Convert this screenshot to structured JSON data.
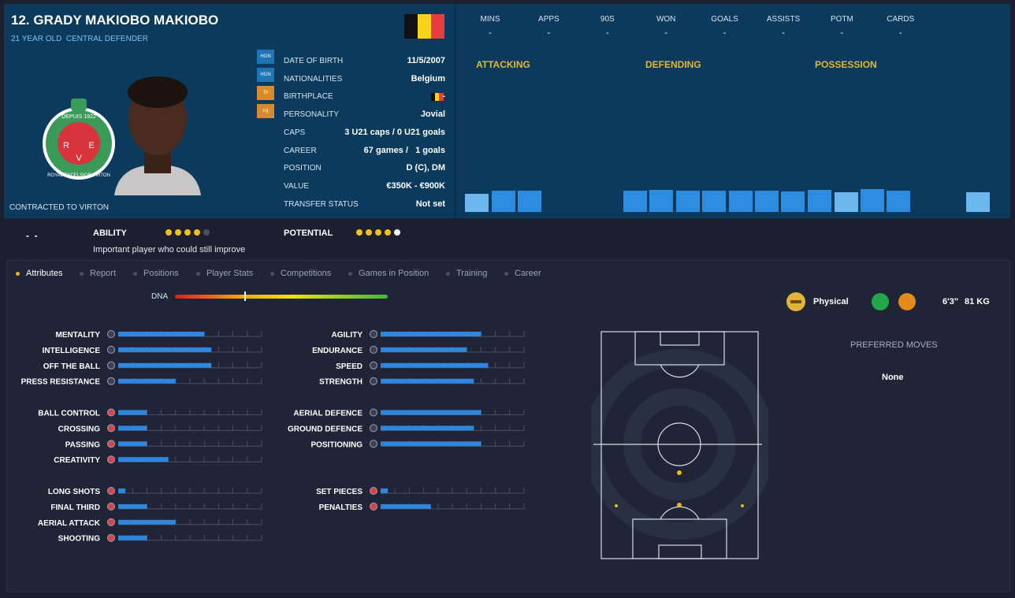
{
  "header": {
    "title": "12. GRADY MAKIOBO MAKIOBO",
    "subtitle": "21 YEAR OLD  CENTRAL DEFENDER",
    "contract": "CONTRACTED TO VIRTON",
    "crest": {
      "top": "DEPUIS 1922",
      "ring": "ROYAL EXCELSIOR VIRTON",
      "letters": [
        "R",
        "E",
        "V"
      ]
    }
  },
  "badges": [
    "HGN",
    "HGN",
    "Tir",
    "Inj"
  ],
  "details": [
    [
      "DATE OF BIRTH",
      "11/5/2007"
    ],
    [
      "NATIONALITIES",
      "Belgium"
    ],
    [
      "BIRTHPLACE",
      "-"
    ],
    [
      "PERSONALITY",
      "Jovial"
    ],
    [
      "CAPS",
      "3 U21 caps / 0 U21 goals"
    ],
    [
      "CAREER",
      "67 games /   1 goals"
    ],
    [
      "POSITION",
      "D (C), DM"
    ],
    [
      "VALUE",
      "€350K - €900K"
    ],
    [
      "TRANSFER STATUS",
      "Not set"
    ]
  ],
  "stats": {
    "headers": [
      "MINS",
      "APPS",
      "90S",
      "WON",
      "GOALS",
      "ASSISTS",
      "POTM",
      "CARDS"
    ],
    "values": [
      "-",
      "-",
      "-",
      "-",
      "-",
      "-",
      "-",
      "-"
    ]
  },
  "sections": [
    "ATTACKING",
    "DEFENDING",
    "POSSESSION"
  ],
  "rating": {
    "dashes": "-  -",
    "ability": {
      "label": "ABILITY",
      "dots": 4,
      "max": 5
    },
    "potential": {
      "label": "POTENTIAL",
      "dots": 4,
      "max": 5
    },
    "comment": "Important player who could still improve"
  },
  "tabs": [
    "Attributes",
    "Report",
    "Positions",
    "Player Stats",
    "Competitions",
    "Games in Position",
    "Training",
    "Career"
  ],
  "dna": "DNA",
  "physical": "Physical",
  "height": "6'3\"",
  "weight": "81 KG",
  "preferred_moves": {
    "title": "PREFERRED MOVES",
    "value": "None"
  },
  "attributes": {
    "range": [
      0,
      20
    ],
    "ticks": [
      2,
      4,
      6,
      8,
      10,
      12,
      14,
      16,
      18,
      20
    ],
    "columns": [
      [
        [
          {
            "name": "MENTALITY",
            "value": 12
          },
          {
            "name": "INTELLIGENCE",
            "value": 13
          },
          {
            "name": "OFF THE BALL",
            "value": 13
          },
          {
            "name": "PRESS RESISTANCE",
            "value": 8
          }
        ],
        [
          {
            "name": "BALL CONTROL",
            "value": 4
          },
          {
            "name": "CROSSING",
            "value": 4
          },
          {
            "name": "PASSING",
            "value": 4
          },
          {
            "name": "CREATIVITY",
            "value": 7
          }
        ],
        [
          {
            "name": "LONG SHOTS",
            "value": 1
          },
          {
            "name": "FINAL THIRD",
            "value": 4
          },
          {
            "name": "AERIAL ATTACK",
            "value": 8
          },
          {
            "name": "SHOOTING",
            "value": 4
          }
        ]
      ],
      [
        [
          {
            "name": "AGILITY",
            "value": 14
          },
          {
            "name": "ENDURANCE",
            "value": 12
          },
          {
            "name": "SPEED",
            "value": 15
          },
          {
            "name": "STRENGTH",
            "value": 13
          }
        ],
        [
          {
            "name": "AERIAL DEFENCE",
            "value": 14
          },
          {
            "name": "GROUND DEFENCE",
            "value": 13
          },
          {
            "name": "POSITIONING",
            "value": 14
          }
        ],
        [
          {
            "name": "SET PIECES",
            "value": 1
          },
          {
            "name": "PENALTIES",
            "value": 7
          }
        ]
      ]
    ]
  }
}
